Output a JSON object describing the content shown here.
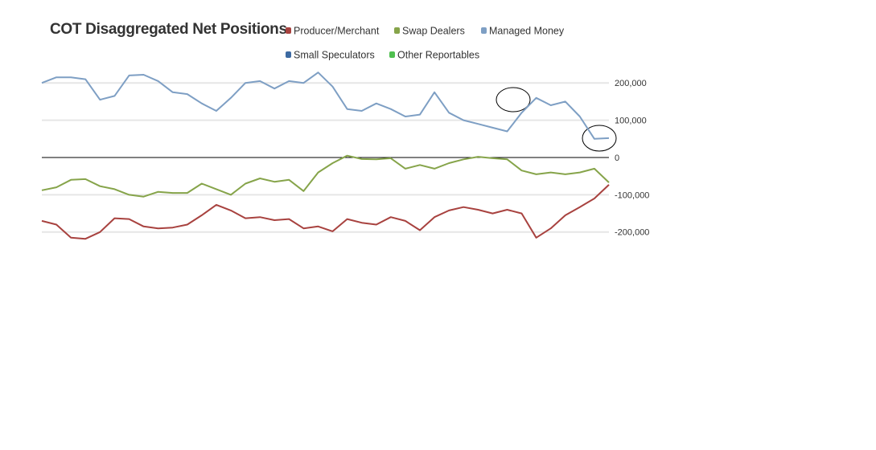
{
  "chart_data": {
    "type": "line",
    "title": "COT Disaggregated Net Positions",
    "ylim": [
      -250000,
      250000
    ],
    "yticks": [
      {
        "value": 200000,
        "label": "200,000"
      },
      {
        "value": 100000,
        "label": "100,000"
      },
      0,
      {
        "value": -100000,
        "label": "-100,000"
      },
      {
        "value": -200000,
        "label": "-200,000"
      }
    ],
    "grid": true,
    "series": [
      {
        "name": "Producer/Merchant",
        "color": "#a8423f",
        "values": [
          -170000,
          -180000,
          -215000,
          -218000,
          -200000,
          -163000,
          -165000,
          -185000,
          -190000,
          -188000,
          -180000,
          -155000,
          -127000,
          -142000,
          -163000,
          -160000,
          -168000,
          -165000,
          -190000,
          -185000,
          -198000,
          -165000,
          -175000,
          -180000,
          -160000,
          -170000,
          -195000,
          -160000,
          -142000,
          -133000,
          -140000,
          -150000,
          -140000,
          -150000,
          -215000,
          -190000,
          -155000,
          -133000,
          -110000,
          -73000
        ]
      },
      {
        "name": "Swap Dealers",
        "color": "#86a44a",
        "values": [
          -88000,
          -80000,
          -60000,
          -58000,
          -77000,
          -85000,
          -100000,
          -105000,
          -92000,
          -95000,
          -95000,
          -70000,
          -85000,
          -100000,
          -70000,
          -56000,
          -65000,
          -60000,
          -90000,
          -40000,
          -15000,
          5000,
          -4000,
          -5000,
          -2000,
          -30000,
          -20000,
          -30000,
          -15000,
          -5000,
          2000,
          -2000,
          -5000,
          -35000,
          -45000,
          -40000,
          -45000,
          -40000,
          -30000,
          -67000
        ]
      },
      {
        "name": "Managed Money",
        "color": "#7e9fc4",
        "values": [
          200000,
          215000,
          215000,
          210000,
          155000,
          165000,
          220000,
          222000,
          205000,
          175000,
          170000,
          145000,
          125000,
          160000,
          200000,
          205000,
          185000,
          205000,
          200000,
          228000,
          190000,
          130000,
          125000,
          145000,
          130000,
          110000,
          115000,
          175000,
          120000,
          100000,
          90000,
          80000,
          70000,
          120000,
          160000,
          140000,
          150000,
          110000,
          50000,
          52000
        ]
      },
      {
        "name": "Small Speculators",
        "color": "#3d6aa2",
        "values": [
          null,
          null,
          null,
          null,
          null,
          null,
          null,
          null,
          null,
          null,
          null,
          null,
          null,
          null,
          null,
          null,
          null,
          null,
          null,
          null,
          null,
          null,
          null,
          null,
          null,
          null,
          null,
          null,
          null,
          null,
          null,
          null,
          null,
          null,
          null,
          null,
          null,
          null,
          null,
          null
        ]
      },
      {
        "name": "Other Reportables",
        "color": "#4fbf4f",
        "values": [
          null,
          null,
          null,
          null,
          null,
          null,
          null,
          null,
          null,
          null,
          null,
          null,
          null,
          null,
          null,
          null,
          null,
          null,
          null,
          null,
          null,
          null,
          null,
          null,
          null,
          null,
          null,
          null,
          null,
          null,
          null,
          null,
          null,
          null,
          null,
          null,
          null,
          null,
          null,
          null
        ]
      }
    ]
  }
}
